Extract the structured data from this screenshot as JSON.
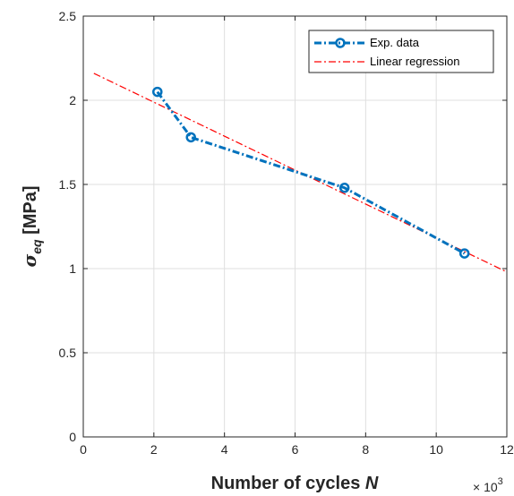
{
  "chart_data": {
    "type": "line",
    "x_multiplier_label": "× 10",
    "x_multiplier_exponent": "3",
    "xlim": [
      0,
      12
    ],
    "ylim": [
      0,
      2.5
    ],
    "xticks": [
      "0",
      "2",
      "4",
      "6",
      "8",
      "10",
      "12"
    ],
    "yticks": [
      "0",
      "0.5",
      "1",
      "1.5",
      "2",
      "2.5"
    ],
    "xlabel_text": "Number of cycles ",
    "xlabel_var": "N",
    "ylabel_symbol": "σ",
    "ylabel_sub": "eq",
    "ylabel_unit": " [MPa]",
    "grid": true,
    "legend_position": "top-right",
    "series": [
      {
        "name": "Exp. data",
        "color": "#0072BD",
        "style": "dash-dot-markers",
        "x": [
          2.1,
          3.05,
          7.4,
          10.8
        ],
        "y": [
          2.05,
          1.78,
          1.48,
          1.09
        ]
      },
      {
        "name": "Linear regression",
        "color": "#FF0000",
        "style": "dash-dot",
        "x": [
          0.3,
          12
        ],
        "y": [
          2.16,
          0.98
        ]
      }
    ]
  }
}
